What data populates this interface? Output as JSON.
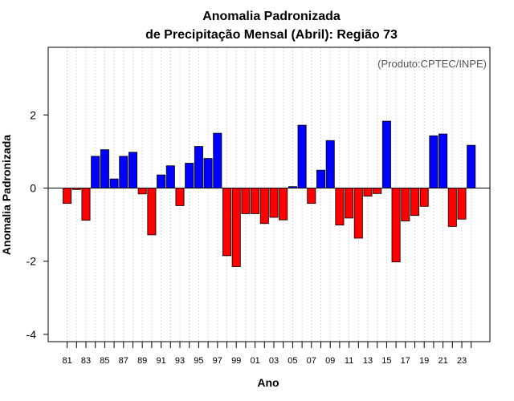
{
  "chart_data": {
    "type": "bar",
    "title_line1": "Anomalia Padronizada",
    "title_line2": "de Precipitação Mensal (Abril): Região 73",
    "xlabel": "Ano",
    "ylabel": "Anomalia Padronizada",
    "credit": "(Produto:CPTEC/INPE)",
    "ylim": [
      -4.2,
      3.85
    ],
    "yticks": [
      -4,
      -2,
      0,
      2
    ],
    "ytick_labels": [
      "-4",
      "-2",
      "0",
      "2"
    ],
    "xtick_labels": [
      "81",
      "83",
      "85",
      "87",
      "89",
      "91",
      "93",
      "95",
      "97",
      "99",
      "01",
      "03",
      "05",
      "07",
      "09",
      "11",
      "13",
      "15",
      "17",
      "19",
      "21",
      "23"
    ],
    "positive_color": "#0000ff",
    "negative_color": "#ff0000",
    "categories": [
      "1981",
      "1982",
      "1983",
      "1984",
      "1985",
      "1986",
      "1987",
      "1988",
      "1989",
      "1990",
      "1991",
      "1992",
      "1993",
      "1994",
      "1995",
      "1996",
      "1997",
      "1998",
      "1999",
      "2000",
      "2001",
      "2002",
      "2003",
      "2004",
      "2005",
      "2006",
      "2007",
      "2008",
      "2009",
      "2010",
      "2011",
      "2012",
      "2013",
      "2014",
      "2015",
      "2016",
      "2017",
      "2018",
      "2019",
      "2020",
      "2021",
      "2022",
      "2023",
      "2024"
    ],
    "values": [
      -0.42,
      -0.04,
      -0.88,
      0.87,
      1.05,
      0.25,
      0.87,
      0.98,
      -0.16,
      -1.28,
      0.36,
      0.61,
      -0.48,
      0.68,
      1.14,
      0.81,
      1.5,
      -1.85,
      -2.15,
      -0.7,
      -0.7,
      -0.97,
      -0.8,
      -0.87,
      0.04,
      1.72,
      -0.42,
      0.49,
      1.3,
      -1.01,
      -0.82,
      -1.37,
      -0.22,
      -0.15,
      1.83,
      -2.02,
      -0.9,
      -0.75,
      -0.5,
      1.43,
      1.48,
      -1.05,
      -0.85,
      1.17
    ]
  }
}
